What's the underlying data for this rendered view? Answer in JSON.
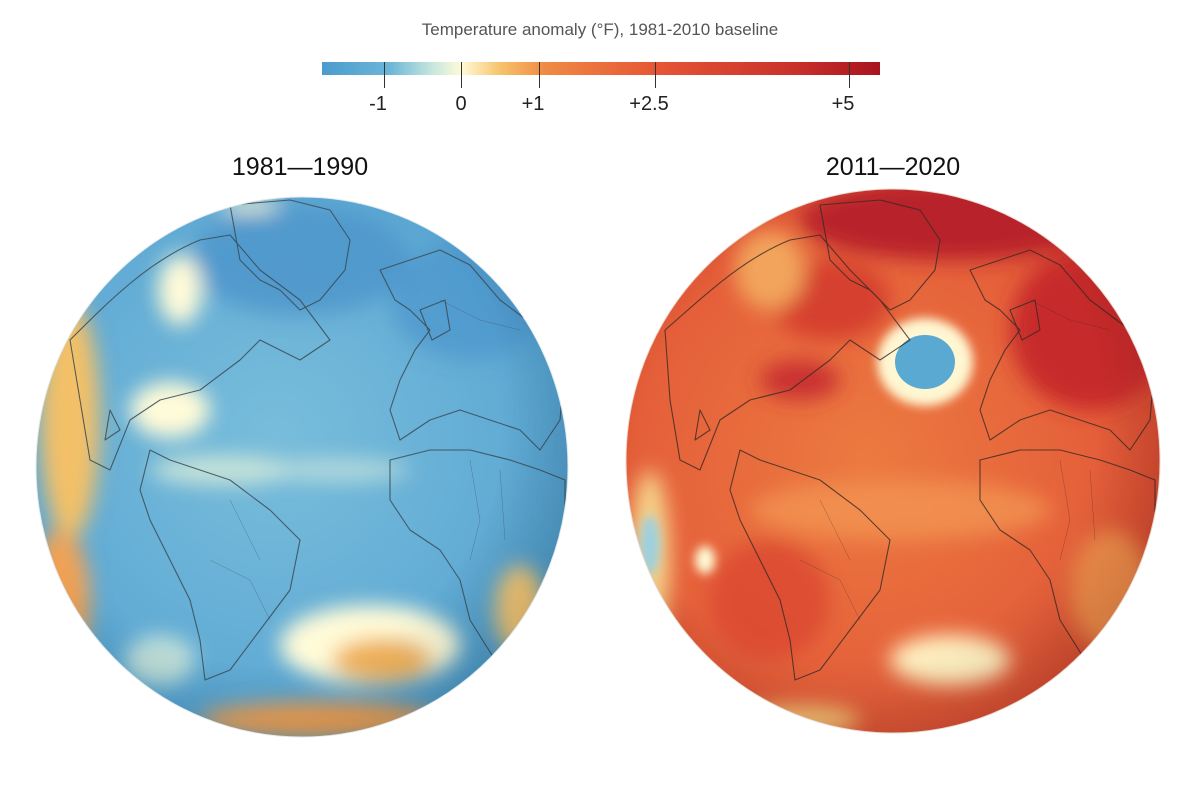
{
  "legend": {
    "title": "Temperature anomaly (°F), 1981-2010 baseline",
    "ticks": [
      {
        "label": "-1",
        "value": -1
      },
      {
        "label": "0",
        "value": 0
      },
      {
        "label": "+1",
        "value": 1
      },
      {
        "label": "+2.5",
        "value": 2.5
      },
      {
        "label": "+5",
        "value": 5
      }
    ],
    "colors": {
      "cold": "#4a9fcf",
      "neutral": "#fffbd8",
      "warm": "#f0803a",
      "hot": "#a8141e"
    }
  },
  "panels": [
    {
      "title": "1981—1990"
    },
    {
      "title": "2011—2020"
    }
  ]
}
